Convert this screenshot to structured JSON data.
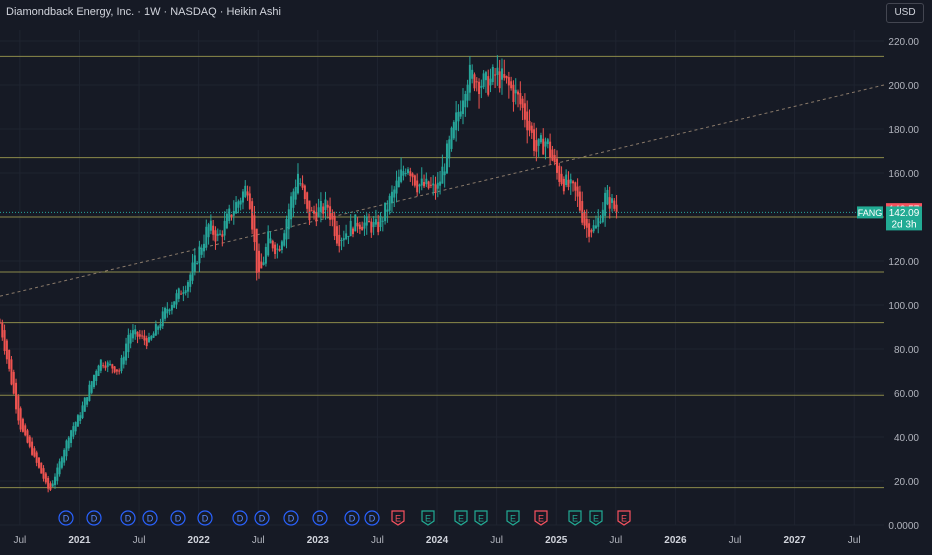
{
  "header": {
    "title": "Diamondback Energy, Inc. · 1W · NASDAQ · Heikin Ashi",
    "currency": "USD"
  },
  "colors": {
    "background": "#161a25",
    "grid": "#1f2430",
    "up": "#26a69a",
    "down": "#ef5350",
    "level_line": "#8c8a4a",
    "trend_line": "#8a7a6a",
    "axis_text": "#b2b5be"
  },
  "price_axis": {
    "ticks": [
      "220.00",
      "200.00",
      "180.00",
      "160.00",
      "140.00",
      "120.00",
      "100.00",
      "80.00",
      "60.00",
      "40.00",
      "20.00",
      "0.0000"
    ],
    "tick_values": [
      220,
      200,
      180,
      160,
      140,
      120,
      100,
      80,
      60,
      40,
      20,
      0
    ],
    "label_high": "143.57",
    "label_last": "142.09",
    "countdown": "2d 3h",
    "symbol": "FANG"
  },
  "time_axis": {
    "labels": [
      "Jul",
      "2021",
      "Jul",
      "2022",
      "Jul",
      "2023",
      "Jul",
      "2024",
      "Jul",
      "2025",
      "Jul",
      "2026",
      "Jul",
      "2027",
      "Jul"
    ]
  },
  "events": [
    {
      "type": "D",
      "label": "D"
    },
    {
      "type": "D",
      "label": "D"
    },
    {
      "type": "D",
      "label": "D"
    },
    {
      "type": "D",
      "label": "D"
    },
    {
      "type": "D",
      "label": "D"
    },
    {
      "type": "D",
      "label": "D"
    },
    {
      "type": "D",
      "label": "D"
    },
    {
      "type": "D",
      "label": "D"
    },
    {
      "type": "D",
      "label": "D"
    },
    {
      "type": "D",
      "label": "D"
    },
    {
      "type": "D",
      "label": "D"
    },
    {
      "type": "D",
      "label": "D"
    },
    {
      "type": "E-red",
      "label": "E"
    },
    {
      "type": "E-green",
      "label": "E"
    },
    {
      "type": "E-green",
      "label": "E"
    },
    {
      "type": "E-green",
      "label": "E"
    },
    {
      "type": "E-green",
      "label": "E"
    },
    {
      "type": "E-red",
      "label": "E"
    },
    {
      "type": "E-green",
      "label": "E"
    },
    {
      "type": "E-green",
      "label": "E"
    },
    {
      "type": "E-red",
      "label": "E"
    }
  ],
  "chart_data": {
    "type": "candlestick",
    "chart_style": "Heikin Ashi",
    "interval": "1W",
    "symbol": "FANG",
    "exchange": "NASDAQ",
    "ylim": [
      0,
      225
    ],
    "x_range": [
      "2020-05",
      "2027-10"
    ],
    "horizontal_levels": [
      213,
      167,
      140,
      115,
      92,
      59,
      17
    ],
    "trend_line": {
      "from": [
        "2020-05",
        104
      ],
      "to": [
        "2027-10",
        200
      ]
    },
    "last_price": 142.09,
    "high_label": 143.57,
    "series": [
      {
        "name": "FANG",
        "anchors": [
          [
            "2020-05",
            92
          ],
          [
            "2020-07",
            45
          ],
          [
            "2020-09",
            25
          ],
          [
            "2020-10",
            15
          ],
          [
            "2020-12",
            42
          ],
          [
            "2021-01",
            50
          ],
          [
            "2021-03",
            75
          ],
          [
            "2021-05",
            70
          ],
          [
            "2021-06",
            88
          ],
          [
            "2021-08",
            83
          ],
          [
            "2021-10",
            100
          ],
          [
            "2021-11",
            105
          ],
          [
            "2021-12",
            112
          ],
          [
            "2022-02",
            136
          ],
          [
            "2022-03",
            130
          ],
          [
            "2022-04",
            140
          ],
          [
            "2022-06",
            155
          ],
          [
            "2022-07",
            110
          ],
          [
            "2022-08",
            130
          ],
          [
            "2022-09",
            125
          ],
          [
            "2022-11",
            160
          ],
          [
            "2022-12",
            140
          ],
          [
            "2023-02",
            145
          ],
          [
            "2023-03",
            130
          ],
          [
            "2023-05",
            138
          ],
          [
            "2023-07",
            135
          ],
          [
            "2023-09",
            155
          ],
          [
            "2023-10",
            165
          ],
          [
            "2023-11",
            155
          ],
          [
            "2024-01",
            152
          ],
          [
            "2024-03",
            185
          ],
          [
            "2024-04",
            205
          ],
          [
            "2024-06",
            200
          ],
          [
            "2024-07",
            205
          ],
          [
            "2024-09",
            195
          ],
          [
            "2024-10",
            185
          ],
          [
            "2024-11",
            170
          ],
          [
            "2024-12",
            175
          ],
          [
            "2025-01",
            160
          ],
          [
            "2025-03",
            150
          ],
          [
            "2025-04",
            135
          ],
          [
            "2025-05",
            135
          ],
          [
            "2025-06",
            150
          ],
          [
            "2025-07",
            143
          ]
        ]
      }
    ]
  }
}
